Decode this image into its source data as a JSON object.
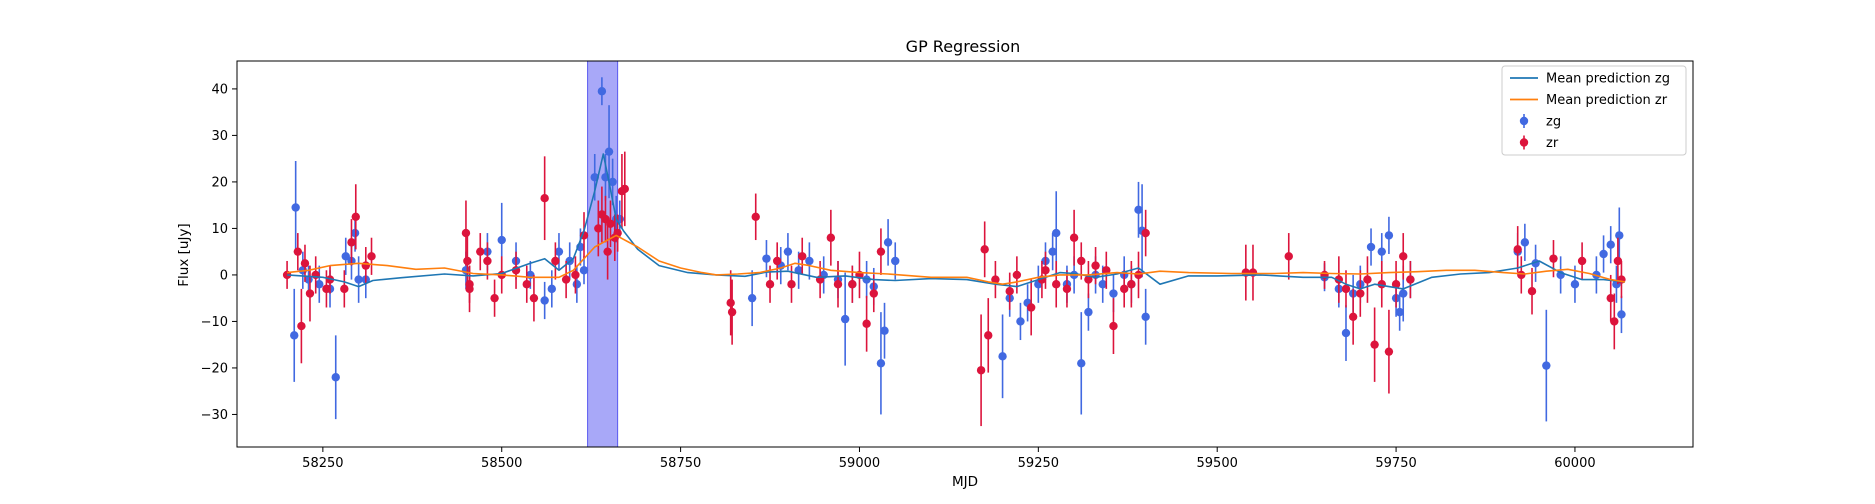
{
  "chart_data": {
    "type": "scatter",
    "title": "GP Regression",
    "xlabel": "MJD",
    "ylabel": "Flux [uJy]",
    "xlim": [
      58130,
      60165
    ],
    "ylim": [
      -37,
      46
    ],
    "xticks": [
      58250,
      58500,
      58750,
      59000,
      59250,
      59500,
      59750,
      60000
    ],
    "yticks": [
      -30,
      -20,
      -10,
      0,
      10,
      20,
      30,
      40
    ],
    "grid": false,
    "legend_position": "top-right",
    "highlight_span": {
      "x0": 58620,
      "x1": 58662,
      "color": "#a8a8f8"
    },
    "mean_predictions": [
      {
        "name": "Mean prediction zg",
        "color": "#1f77b4",
        "x": [
          58200,
          58250,
          58280,
          58300,
          58320,
          58360,
          58420,
          58460,
          58500,
          58540,
          58560,
          58580,
          58600,
          58615,
          58630,
          58642,
          58650,
          58660,
          58670,
          58690,
          58720,
          58760,
          58800,
          58840,
          58870,
          58900,
          58940,
          58980,
          59020,
          59050,
          59100,
          59150,
          59190,
          59220,
          59250,
          59280,
          59300,
          59330,
          59360,
          59390,
          59420,
          59460,
          59500,
          59560,
          59620,
          59660,
          59680,
          59700,
          59720,
          59740,
          59760,
          59800,
          59840,
          59880,
          59920,
          59950,
          59980,
          60010,
          60040,
          60070
        ],
        "y": [
          0,
          -0.5,
          -1.5,
          -2.5,
          -1.2,
          -0.6,
          0.2,
          -0.2,
          0.3,
          2.5,
          3.5,
          1.0,
          3.5,
          9.5,
          18.0,
          26.0,
          20.0,
          12.0,
          9.5,
          5.5,
          2.0,
          0.5,
          0,
          -0.3,
          0.6,
          0.8,
          -0.5,
          -0.2,
          -1.0,
          -1.2,
          -0.8,
          -1.0,
          -2.0,
          -2.5,
          -1.0,
          0.5,
          0.3,
          -0.5,
          0.2,
          1.5,
          -2.0,
          -0.2,
          -0.2,
          0,
          -0.5,
          -0.5,
          -2.0,
          -3.0,
          -2.0,
          -2.5,
          -3.0,
          -0.5,
          0.2,
          0.5,
          1.5,
          3.0,
          0.5,
          -1.0,
          -1.0,
          -1.5
        ]
      },
      {
        "name": "Mean prediction zr",
        "color": "#ff7f0e",
        "x": [
          58200,
          58230,
          58260,
          58300,
          58340,
          58380,
          58420,
          58460,
          58500,
          58540,
          58580,
          58600,
          58630,
          58660,
          58690,
          58720,
          58750,
          58780,
          58800,
          58830,
          58860,
          58890,
          58910,
          58930,
          58960,
          59000,
          59040,
          59100,
          59150,
          59180,
          59200,
          59220,
          59250,
          59280,
          59320,
          59360,
          59390,
          59420,
          59460,
          59520,
          59580,
          59620,
          59660,
          59700,
          59740,
          59780,
          59820,
          59860,
          59900,
          59930,
          59960,
          59990,
          60020,
          60050,
          60070
        ],
        "y": [
          0.5,
          1.0,
          2.0,
          2.5,
          2.0,
          1.2,
          1.5,
          0.3,
          0,
          -0.5,
          -0.5,
          1.0,
          6.0,
          8.5,
          6.0,
          3.0,
          1.5,
          0.5,
          0,
          0.2,
          0.5,
          1.5,
          2.5,
          2.0,
          1.0,
          0.5,
          0.2,
          -0.5,
          -0.5,
          -1.5,
          -2.0,
          -1.5,
          -0.5,
          0,
          0,
          0.5,
          0.2,
          0.8,
          0.5,
          0.3,
          0.3,
          0.5,
          0.3,
          0.2,
          0.5,
          0.7,
          1.0,
          1.0,
          0.5,
          0.2,
          0.8,
          1.2,
          0.3,
          -1.0,
          -1.5
        ]
      }
    ],
    "series": [
      {
        "name": "zg",
        "color": "#4169e1",
        "points": [
          [
            58212,
            14.5,
            10
          ],
          [
            58210,
            -13,
            10
          ],
          [
            58222,
            1,
            4
          ],
          [
            58230,
            -1,
            3
          ],
          [
            58245,
            -2,
            4
          ],
          [
            58260,
            -3,
            4
          ],
          [
            58268,
            -22,
            9
          ],
          [
            58282,
            4,
            4
          ],
          [
            58290,
            3,
            4
          ],
          [
            58295,
            9,
            4
          ],
          [
            58300,
            -1,
            5
          ],
          [
            58310,
            -1,
            4
          ],
          [
            58450,
            1,
            4
          ],
          [
            58480,
            5,
            4
          ],
          [
            58500,
            7.5,
            8
          ],
          [
            58520,
            3,
            4
          ],
          [
            58540,
            0,
            3
          ],
          [
            58560,
            -5.5,
            4
          ],
          [
            58570,
            -3,
            4
          ],
          [
            58580,
            5,
            4
          ],
          [
            58595,
            3,
            4
          ],
          [
            58605,
            -2,
            4
          ],
          [
            58610,
            6,
            4
          ],
          [
            58615,
            1,
            3
          ],
          [
            58630,
            21,
            5
          ],
          [
            58640,
            39.5,
            3
          ],
          [
            58645,
            21,
            5
          ],
          [
            58650,
            26.5,
            10
          ],
          [
            58655,
            20,
            5
          ],
          [
            58660,
            12,
            5
          ],
          [
            58665,
            12,
            4
          ],
          [
            58850,
            -5,
            6
          ],
          [
            58870,
            3.5,
            4
          ],
          [
            58890,
            2,
            4
          ],
          [
            58900,
            5,
            4
          ],
          [
            58915,
            1,
            4
          ],
          [
            58930,
            3,
            4
          ],
          [
            58950,
            0,
            4
          ],
          [
            58970,
            -1,
            4
          ],
          [
            58980,
            -9.5,
            10
          ],
          [
            58990,
            -2,
            4
          ],
          [
            59010,
            -1,
            4
          ],
          [
            59020,
            -2.5,
            4
          ],
          [
            59030,
            -19,
            11
          ],
          [
            59035,
            -12,
            6
          ],
          [
            59040,
            7,
            5
          ],
          [
            59050,
            3,
            4
          ],
          [
            59200,
            -17.5,
            9
          ],
          [
            59210,
            -5,
            4
          ],
          [
            59225,
            -10,
            4
          ],
          [
            59235,
            -6,
            4
          ],
          [
            59250,
            -2,
            4
          ],
          [
            59260,
            3,
            4
          ],
          [
            59270,
            5,
            4
          ],
          [
            59275,
            9,
            9
          ],
          [
            59290,
            -2,
            4
          ],
          [
            59300,
            0,
            4
          ],
          [
            59310,
            -19,
            11
          ],
          [
            59320,
            -8,
            4
          ],
          [
            59330,
            0,
            4
          ],
          [
            59340,
            -2,
            4
          ],
          [
            59355,
            -4,
            4
          ],
          [
            59370,
            0,
            4
          ],
          [
            59380,
            -2,
            4
          ],
          [
            59390,
            14,
            6
          ],
          [
            59395,
            9.5,
            10
          ],
          [
            59400,
            -9,
            6
          ],
          [
            59650,
            -0.5,
            3
          ],
          [
            59670,
            -3,
            4
          ],
          [
            59680,
            -12.5,
            6
          ],
          [
            59690,
            -4,
            4
          ],
          [
            59700,
            -2,
            4
          ],
          [
            59715,
            6,
            4
          ],
          [
            59730,
            5,
            4
          ],
          [
            59740,
            8.5,
            4
          ],
          [
            59750,
            -5,
            4
          ],
          [
            59755,
            -8,
            4
          ],
          [
            59760,
            -4,
            6
          ],
          [
            59770,
            -1,
            4
          ],
          [
            59920,
            5,
            4
          ],
          [
            59930,
            7,
            4
          ],
          [
            59945,
            2.5,
            4
          ],
          [
            59960,
            -19.5,
            12
          ],
          [
            59980,
            0,
            4
          ],
          [
            60000,
            -2,
            4
          ],
          [
            60030,
            0,
            4
          ],
          [
            60040,
            4.5,
            4
          ],
          [
            60050,
            6.5,
            4
          ],
          [
            60058,
            -2,
            4
          ],
          [
            60062,
            8.5,
            6
          ],
          [
            60065,
            -8.5,
            4
          ]
        ]
      },
      {
        "name": "zr",
        "color": "#dc143c",
        "points": [
          [
            58200,
            0,
            3
          ],
          [
            58215,
            5,
            4
          ],
          [
            58220,
            -11,
            8
          ],
          [
            58225,
            2.5,
            4
          ],
          [
            58232,
            -4,
            6
          ],
          [
            58240,
            0,
            4
          ],
          [
            58255,
            -3,
            4
          ],
          [
            58260,
            -1,
            3
          ],
          [
            58280,
            -3,
            4
          ],
          [
            58290,
            7,
            5
          ],
          [
            58296,
            12.5,
            7
          ],
          [
            58310,
            2,
            4
          ],
          [
            58318,
            4,
            4
          ],
          [
            58450,
            9,
            7
          ],
          [
            58452,
            3,
            6
          ],
          [
            58455,
            -2,
            4
          ],
          [
            58455,
            -3,
            5
          ],
          [
            58470,
            5,
            4
          ],
          [
            58480,
            3,
            4
          ],
          [
            58490,
            -5,
            4
          ],
          [
            58500,
            0,
            4
          ],
          [
            58520,
            1,
            4
          ],
          [
            58535,
            -2,
            4
          ],
          [
            58545,
            -5,
            5
          ],
          [
            58560,
            16.5,
            9
          ],
          [
            58575,
            3,
            4
          ],
          [
            58590,
            -1,
            4
          ],
          [
            58603,
            0,
            4
          ],
          [
            58615,
            8.5,
            5
          ],
          [
            58635,
            10,
            6
          ],
          [
            58640,
            13,
            6
          ],
          [
            58645,
            12,
            5
          ],
          [
            58648,
            5,
            6
          ],
          [
            58652,
            11,
            5
          ],
          [
            58658,
            8,
            5
          ],
          [
            58662,
            9,
            4
          ],
          [
            58668,
            18,
            8
          ],
          [
            58672,
            18.5,
            8
          ],
          [
            58820,
            -6,
            7
          ],
          [
            58822,
            -8,
            7
          ],
          [
            58855,
            12.5,
            5
          ],
          [
            58875,
            -2,
            4
          ],
          [
            58885,
            3,
            4
          ],
          [
            58905,
            -2,
            4
          ],
          [
            58920,
            4,
            4
          ],
          [
            58945,
            -1,
            4
          ],
          [
            58960,
            8,
            6
          ],
          [
            58970,
            -2,
            5
          ],
          [
            58990,
            -2,
            4
          ],
          [
            59000,
            0,
            5
          ],
          [
            59010,
            -10.5,
            6
          ],
          [
            59020,
            -4,
            4
          ],
          [
            59030,
            5,
            5
          ],
          [
            59170,
            -20.5,
            12
          ],
          [
            59175,
            5.5,
            6
          ],
          [
            59180,
            -13,
            8
          ],
          [
            59190,
            -1,
            4
          ],
          [
            59210,
            -3.5,
            4
          ],
          [
            59220,
            0,
            4
          ],
          [
            59240,
            -7,
            6
          ],
          [
            59255,
            -1,
            4
          ],
          [
            59260,
            1,
            4
          ],
          [
            59275,
            -2,
            5
          ],
          [
            59290,
            -3,
            4
          ],
          [
            59300,
            8,
            6
          ],
          [
            59310,
            3,
            4
          ],
          [
            59320,
            -1,
            4
          ],
          [
            59330,
            2,
            4
          ],
          [
            59345,
            1,
            4
          ],
          [
            59355,
            -11,
            6
          ],
          [
            59370,
            -3,
            4
          ],
          [
            59380,
            -2,
            5
          ],
          [
            59390,
            0,
            5
          ],
          [
            59400,
            9,
            5
          ],
          [
            59540,
            0.5,
            6
          ],
          [
            59550,
            0.5,
            6
          ],
          [
            59600,
            4,
            5
          ],
          [
            59650,
            0,
            3
          ],
          [
            59670,
            -1,
            5
          ],
          [
            59680,
            -3,
            4
          ],
          [
            59690,
            -9,
            6
          ],
          [
            59700,
            -4,
            5
          ],
          [
            59710,
            -1,
            5
          ],
          [
            59720,
            -15,
            8
          ],
          [
            59730,
            -2,
            5
          ],
          [
            59740,
            -16.5,
            9
          ],
          [
            59750,
            -2,
            5
          ],
          [
            59760,
            4,
            5
          ],
          [
            59770,
            -1,
            4
          ],
          [
            59920,
            5.5,
            5
          ],
          [
            59925,
            0,
            4
          ],
          [
            59940,
            -3.5,
            5
          ],
          [
            59970,
            3.5,
            4
          ],
          [
            60010,
            3,
            4
          ],
          [
            60050,
            -5,
            5
          ],
          [
            60055,
            -10,
            6
          ],
          [
            60060,
            3,
            5
          ],
          [
            60065,
            -1,
            4
          ]
        ]
      }
    ]
  }
}
